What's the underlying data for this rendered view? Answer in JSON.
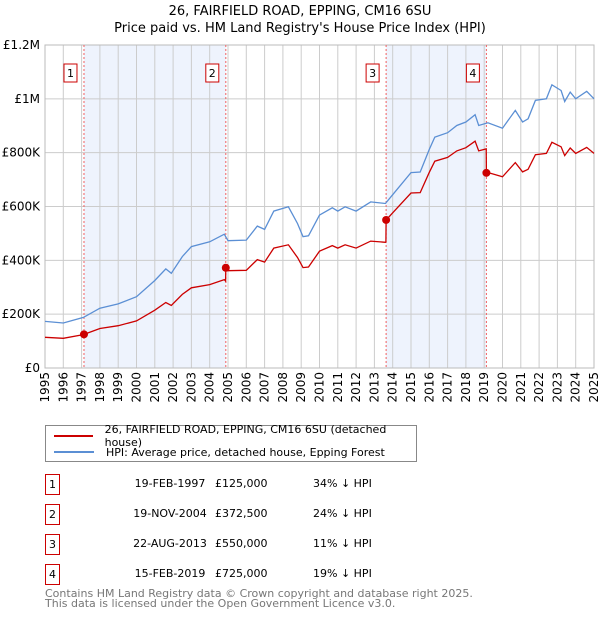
{
  "title_line1": "26, FAIRFIELD ROAD, EPPING, CM16 6SU",
  "title_line2": "Price paid vs. HM Land Registry's House Price Index (HPI)",
  "colors": {
    "price_paid": "#cc0000",
    "hpi": "#5b8fd4",
    "shade": "#eef3fd",
    "grid": "#cccccc"
  },
  "chart_data": {
    "type": "line",
    "xlim": [
      1995,
      2025
    ],
    "ylim": [
      0,
      1200000
    ],
    "x_ticks": [
      "1995",
      "1996",
      "1997",
      "1998",
      "1999",
      "2000",
      "2001",
      "2002",
      "2003",
      "2004",
      "2005",
      "2006",
      "2007",
      "2008",
      "2009",
      "2010",
      "2011",
      "2012",
      "2013",
      "2014",
      "2015",
      "2016",
      "2017",
      "2018",
      "2019",
      "2020",
      "2021",
      "2022",
      "2023",
      "2024",
      "2025"
    ],
    "y_ticks": [
      {
        "value": 0,
        "label": "£0"
      },
      {
        "value": 200000,
        "label": "£200K"
      },
      {
        "value": 400000,
        "label": "£400K"
      },
      {
        "value": 600000,
        "label": "£600K"
      },
      {
        "value": 800000,
        "label": "£800K"
      },
      {
        "value": 1000000,
        "label": "£1M"
      },
      {
        "value": 1200000,
        "label": "£1.2M"
      }
    ],
    "grid": true,
    "series": [
      {
        "name": "HPI: Average price, detached house, Epping Forest",
        "points": [
          [
            1995.0,
            173000
          ],
          [
            1996.0,
            167000
          ],
          [
            1997.1,
            188000
          ],
          [
            1998.0,
            222000
          ],
          [
            1999.0,
            238000
          ],
          [
            2000.0,
            265000
          ],
          [
            2001.0,
            325000
          ],
          [
            2001.6,
            368000
          ],
          [
            2001.9,
            352000
          ],
          [
            2002.5,
            414000
          ],
          [
            2003.0,
            451000
          ],
          [
            2004.0,
            469000
          ],
          [
            2004.8,
            497000
          ],
          [
            2005.0,
            473000
          ],
          [
            2006.0,
            475000
          ],
          [
            2006.6,
            527000
          ],
          [
            2007.0,
            515000
          ],
          [
            2007.5,
            583000
          ],
          [
            2008.3,
            599000
          ],
          [
            2008.8,
            537000
          ],
          [
            2009.1,
            488000
          ],
          [
            2009.4,
            491000
          ],
          [
            2010.0,
            568000
          ],
          [
            2010.7,
            595000
          ],
          [
            2011.0,
            583000
          ],
          [
            2011.4,
            599000
          ],
          [
            2012.0,
            583000
          ],
          [
            2012.8,
            617000
          ],
          [
            2013.6,
            611000
          ],
          [
            2014.0,
            644000
          ],
          [
            2015.0,
            726000
          ],
          [
            2015.5,
            728000
          ],
          [
            2016.0,
            812000
          ],
          [
            2016.3,
            858000
          ],
          [
            2017.0,
            874000
          ],
          [
            2017.5,
            901000
          ],
          [
            2018.0,
            914000
          ],
          [
            2018.5,
            941000
          ],
          [
            2018.7,
            901000
          ],
          [
            2019.2,
            911000
          ],
          [
            2020.0,
            891000
          ],
          [
            2020.7,
            957000
          ],
          [
            2021.1,
            914000
          ],
          [
            2021.4,
            926000
          ],
          [
            2021.8,
            994000
          ],
          [
            2022.4,
            1000000
          ],
          [
            2022.7,
            1052000
          ],
          [
            2023.2,
            1031000
          ],
          [
            2023.4,
            990000
          ],
          [
            2023.7,
            1025000
          ],
          [
            2024.0,
            1000000
          ],
          [
            2024.6,
            1028000
          ],
          [
            2025.0,
            1000000
          ]
        ]
      },
      {
        "name": "26, FAIRFIELD ROAD, EPPING, CM16 6SU (detached house)",
        "derived_from": "hpi_indexed_to_sales",
        "pre_first_sale_ratio": 0.66
      }
    ],
    "sales": [
      {
        "n": "1",
        "x": 1997.13,
        "date": "19-FEB-1997",
        "price": 125000,
        "price_label": "£125,000",
        "hpi_label": "34% ↓ HPI"
      },
      {
        "n": "2",
        "x": 2004.88,
        "date": "19-NOV-2004",
        "price": 372500,
        "price_label": "£372,500",
        "hpi_label": "24% ↓ HPI"
      },
      {
        "n": "3",
        "x": 2013.64,
        "date": "22-AUG-2013",
        "price": 550000,
        "price_label": "£550,000",
        "hpi_label": "11% ↓ HPI"
      },
      {
        "n": "4",
        "x": 2019.12,
        "date": "15-FEB-2019",
        "price": 725000,
        "price_label": "£725,000",
        "hpi_label": "19% ↓ HPI"
      }
    ],
    "shaded_ranges": [
      [
        1997.13,
        2004.88
      ],
      [
        2013.64,
        2019.12
      ]
    ]
  },
  "legend": {
    "price_paid": "26, FAIRFIELD ROAD, EPPING, CM16 6SU (detached house)",
    "hpi": "HPI: Average price, detached house, Epping Forest",
    "placement": "below"
  },
  "footer": {
    "line1": "Contains HM Land Registry data © Crown copyright and database right 2025.",
    "line2": "This data is licensed under the Open Government Licence v3.0."
  }
}
